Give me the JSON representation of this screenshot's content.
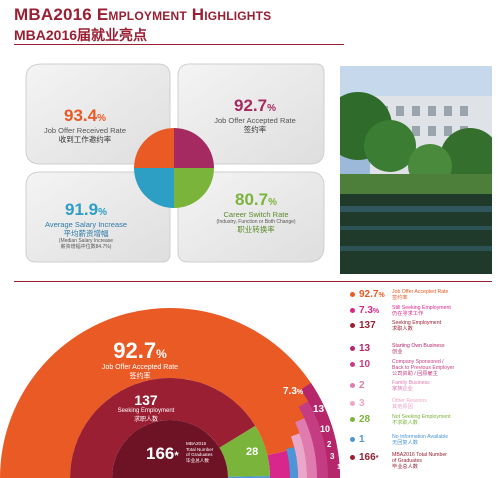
{
  "header": {
    "title_en": "MBA2016 Employment Highlights",
    "title_zh": "MBA2016届就业亮点"
  },
  "colors": {
    "maroon": "#9a1f33",
    "orange": "#ea5a25",
    "magenta": "#a52a61",
    "teal": "#2d9ec4",
    "green": "#7ab43a",
    "pink": "#d9268c",
    "lightpink": "#e07bb0",
    "blue": "#4a96d6"
  },
  "highlights": [
    {
      "value": "93.4",
      "unit": "%",
      "label_en": "Job Offer Received Rate",
      "label_zh": "收到工作邀约率",
      "color": "#ea5a25"
    },
    {
      "value": "92.7",
      "unit": "%",
      "label_en": "Job Offer Accepted Rate",
      "label_zh": "签约率",
      "color": "#a52a61"
    },
    {
      "value": "91.9",
      "unit": "%",
      "label_en": "Average Salary Increase",
      "label_zh": "平均薪资增幅",
      "sub1": "(Median Salary Increase",
      "sub2": "薪资增幅中位数84.7%)",
      "color": "#2d9ec4"
    },
    {
      "value": "80.7",
      "unit": "%",
      "label_en": "Career Switch Rate",
      "label_zh": "职业转换率",
      "sub1": "(Industry, Function or Both Change)",
      "color": "#7ab43a"
    }
  ],
  "chart_data": {
    "type": "pie",
    "title": "",
    "total": 166,
    "center": {
      "value": "166",
      "mark": "*",
      "label_lines": [
        "MBA2016",
        "Total Number",
        "of Graduates",
        "毕业总人数"
      ]
    },
    "big_label": {
      "value": "92.7",
      "unit": "%",
      "label_en": "Job Offer Accepted Rate",
      "label_zh": "签约率"
    },
    "seeking_label": {
      "value": "137",
      "label_en": "Seeking Employment",
      "label_zh": "求职人数"
    },
    "arc_labels": [
      {
        "text": "7.3",
        "unit": "%"
      },
      {
        "text": "13"
      },
      {
        "text": "10"
      },
      {
        "text": "2"
      },
      {
        "text": "3"
      },
      {
        "text": "1"
      }
    ],
    "twentyeight_label": "28",
    "legend": [
      {
        "value": "92.7",
        "unit": "%",
        "label": [
          "Job Offer Accepted Rate",
          "签约率"
        ],
        "color": "#ea5a25"
      },
      {
        "value": "7.3",
        "unit": "%",
        "label": [
          "Still Seeking Employment",
          "仍在寻求工作"
        ],
        "color": "#d9268c"
      },
      {
        "value": "137",
        "unit": "",
        "label": [
          "Seeking Employment",
          "求职人数"
        ],
        "color": "#9a1f33"
      },
      {
        "value": "13",
        "unit": "",
        "label": [
          "Starting Own Business",
          "创业"
        ],
        "color": "#b5266b"
      },
      {
        "value": "10",
        "unit": "",
        "label": [
          "Company Sponsored /",
          "Back to Previous Employer",
          "公司资助 / 回原雇主"
        ],
        "color": "#c43c82"
      },
      {
        "value": "2",
        "unit": "",
        "label": [
          "Family Business",
          "家族企业"
        ],
        "color": "#e07bb0"
      },
      {
        "value": "3",
        "unit": "",
        "label": [
          "Other Reasons",
          "其他原因"
        ],
        "color": "#eba7c9"
      },
      {
        "value": "28",
        "unit": "",
        "label": [
          "Not Seeking Employment",
          "不求职人数"
        ],
        "color": "#7ab43a"
      },
      {
        "value": "1",
        "unit": "",
        "label": [
          "No Information Available",
          "无回复人数"
        ],
        "color": "#4a96d6"
      },
      {
        "value": "166",
        "unit": "*",
        "label": [
          "MBA2016 Total Number",
          "of Graduates",
          "毕业总人数"
        ],
        "color": "#9a1f33"
      }
    ]
  }
}
